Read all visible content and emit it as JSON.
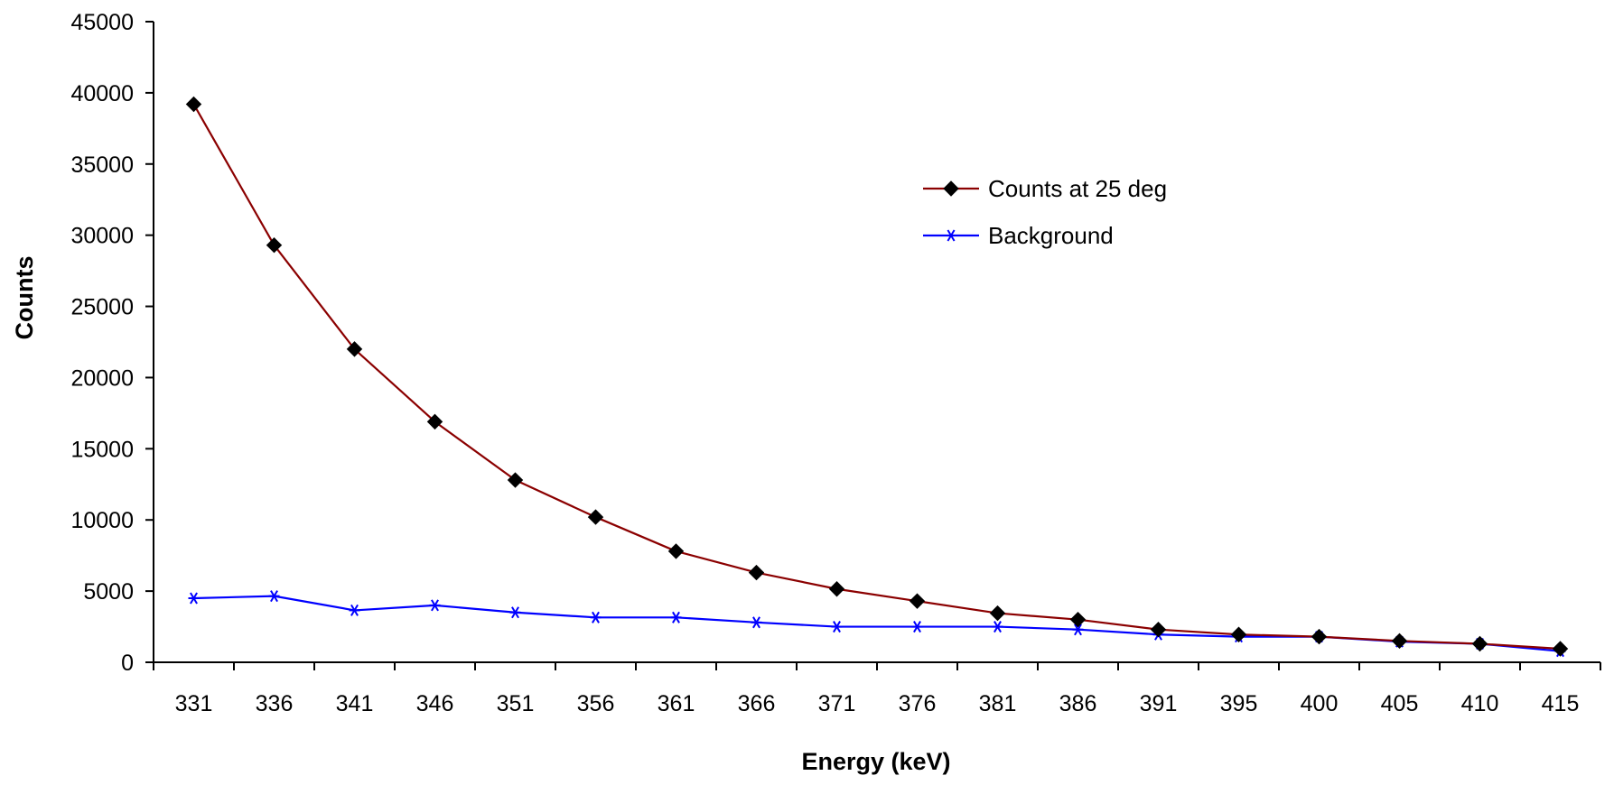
{
  "chart_data": {
    "type": "line",
    "title": "",
    "xlabel": "Energy (keV)",
    "ylabel": "Counts",
    "ylim": [
      0,
      45000
    ],
    "yticks": [
      0,
      5000,
      10000,
      15000,
      20000,
      25000,
      30000,
      35000,
      40000,
      45000
    ],
    "categories": [
      "331",
      "336",
      "341",
      "346",
      "351",
      "356",
      "361",
      "366",
      "371",
      "376",
      "381",
      "386",
      "391",
      "395",
      "400",
      "405",
      "410",
      "415"
    ],
    "grid": false,
    "legend_position": "upper-right",
    "series": [
      {
        "name": "Counts at 25 deg",
        "color": "#8b0000",
        "marker": "diamond",
        "marker_color": "#000000",
        "values": [
          39200,
          29300,
          22000,
          16900,
          12800,
          10200,
          7800,
          6300,
          5150,
          4300,
          3450,
          3000,
          2300,
          1950,
          1800,
          1500,
          1300,
          950
        ]
      },
      {
        "name": "Background",
        "color": "#0000ff",
        "marker": "asterisk",
        "marker_color": "#0000ff",
        "values": [
          4500,
          4650,
          3650,
          4000,
          3500,
          3150,
          3150,
          2800,
          2500,
          2500,
          2500,
          2300,
          1950,
          1800,
          1800,
          1450,
          1300,
          780
        ]
      }
    ]
  }
}
